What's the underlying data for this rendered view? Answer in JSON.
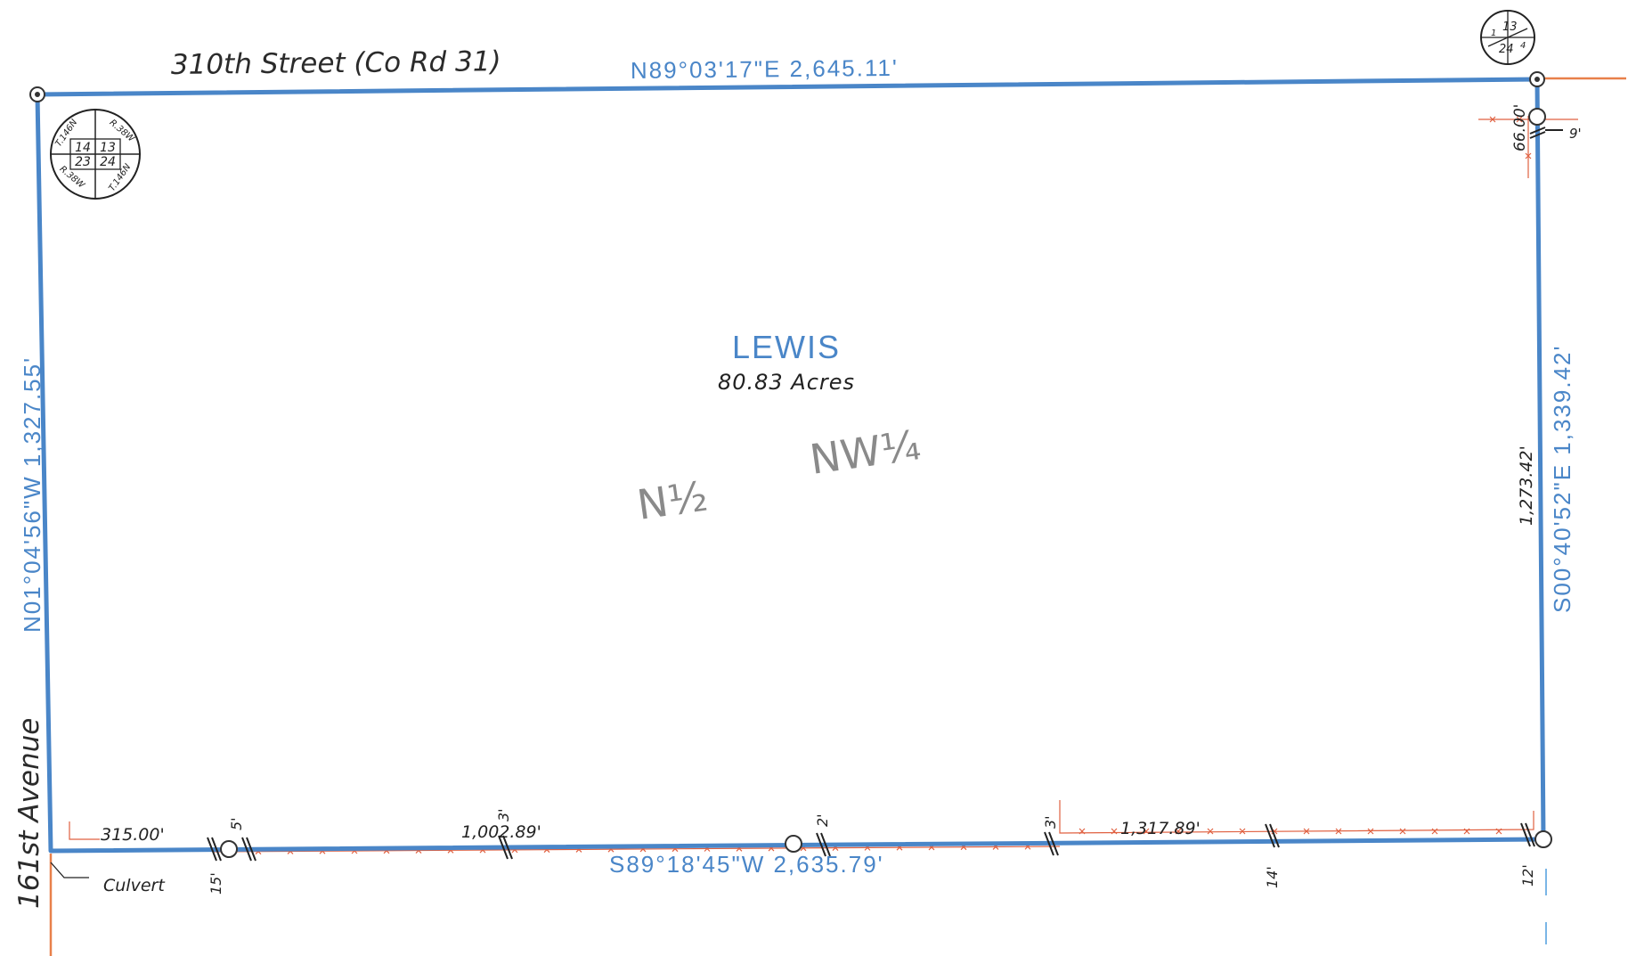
{
  "roads": {
    "north": "310th Street (Co Rd 31)",
    "west": "161st Avenue"
  },
  "bearings": {
    "north": "N89°03'17\"E  2,645.11'",
    "west": "N01°04'56\"W  1,327.55'",
    "east": "S00°40'52\"E  1,339.42'",
    "south": "S89°18'45\"W  2,635.79'"
  },
  "parcel": {
    "owner": "LEWIS",
    "area": "80.83 Acres",
    "half_label": "N½",
    "quarter_label": "NW¼"
  },
  "dimensions": {
    "east_inner": "1,273.42'",
    "east_offset": "66.00'",
    "east_setback": "9'",
    "south_315": "315.00'",
    "south_1002": "1,002.89'",
    "south_1317": "1,317.89'"
  },
  "fence_offsets": {
    "a": "5'",
    "b": "3'",
    "c": "2'",
    "d": "3'",
    "e": "15'",
    "f": "14'",
    "g": "12'"
  },
  "notes": {
    "culvert": "Culvert"
  },
  "section_diagram_nw": {
    "cells": [
      "14",
      "13",
      "23",
      "24"
    ],
    "twp_top": "T.146N",
    "rng_top": "R.38W",
    "rng_bottom": "R.38W",
    "twp_bottom": "T.146N"
  },
  "section_diagram_ne": {
    "cells": [
      "1",
      "13",
      "24",
      "4"
    ]
  },
  "colors": {
    "boundary": "#4a86c8",
    "fence": "#e06040",
    "road_centerline": "#e8804a",
    "pencil": "#8a8a8a",
    "ink": "#222222"
  }
}
